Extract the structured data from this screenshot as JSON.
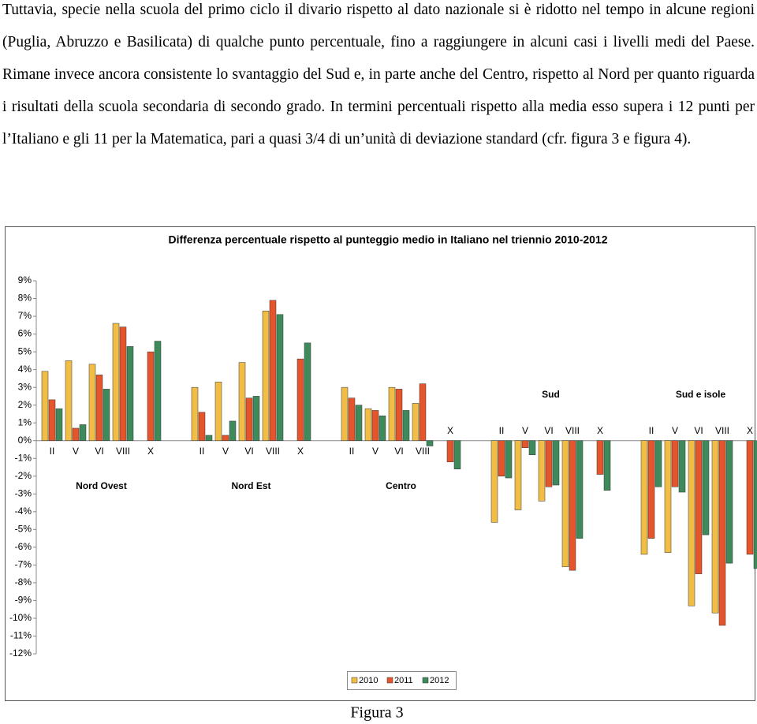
{
  "text": {
    "paragraph": "Tuttavia, specie nella scuola del primo ciclo il divario rispetto al dato nazionale si è ridotto nel tempo in alcune regioni (Puglia, Abruzzo e Basilicata) di qualche punto percentuale, fino a raggiungere in alcuni casi i livelli medi del Paese. Rimane invece ancora consistente lo svantaggio del Sud e, in parte anche del Centro, rispetto al Nord per quanto riguarda i risultati della scuola secondaria di secondo grado. In termini percentuali rispetto alla media esso supera i 12 punti per l’Italiano e gli 11 per la Matematica, pari a quasi 3/4 di un’unità di deviazione standard (cfr. figura 3 e figura 4).",
    "caption": "Figura 3"
  },
  "chart_data": {
    "type": "bar",
    "title": "Differenza percentuale rispetto al punteggio medio in Italiano nel triennio 2010-2012",
    "groups": [
      "Nord Ovest",
      "Nord Est",
      "Centro",
      "Sud",
      "Sud e isole"
    ],
    "categories": [
      "II",
      "V",
      "VI",
      "VIII",
      "X",
      "II",
      "V",
      "VI",
      "VIII",
      "X",
      "II",
      "V",
      "VI",
      "VIII",
      "X",
      "II",
      "V",
      "VI",
      "VIII",
      "X",
      "II",
      "V",
      "VI",
      "VIII",
      "X"
    ],
    "series": [
      {
        "name": "2010",
        "color": "#f2bd45",
        "values": [
          3.9,
          4.5,
          4.3,
          6.6,
          null,
          3.0,
          3.3,
          4.4,
          7.3,
          null,
          3.0,
          1.8,
          3.0,
          2.1,
          null,
          -4.6,
          -3.9,
          -3.4,
          -7.1,
          null,
          -6.4,
          -6.3,
          -9.3,
          -9.7,
          null
        ]
      },
      {
        "name": "2011",
        "color": "#e4552b",
        "values": [
          2.3,
          0.7,
          3.7,
          6.4,
          5.0,
          1.6,
          0.3,
          2.4,
          7.9,
          4.6,
          2.4,
          1.7,
          2.9,
          3.2,
          -1.2,
          -2.0,
          -0.4,
          -2.6,
          -7.3,
          -1.9,
          -5.5,
          -2.6,
          -7.5,
          -10.4,
          -6.4
        ]
      },
      {
        "name": "2012",
        "color": "#3e8a5b",
        "values": [
          1.8,
          0.9,
          2.9,
          5.3,
          5.6,
          0.3,
          1.1,
          2.5,
          7.1,
          5.5,
          2.0,
          1.4,
          1.7,
          -0.3,
          -1.6,
          -2.1,
          -0.8,
          -2.5,
          -5.5,
          -2.8,
          -2.6,
          -2.9,
          -5.3,
          -6.9,
          -7.2
        ]
      }
    ],
    "ylim": [
      -12,
      9
    ],
    "yticks": [
      {
        "value": 9,
        "label": "9%"
      },
      {
        "value": 8,
        "label": "8%"
      },
      {
        "value": 7,
        "label": "7%"
      },
      {
        "value": 6,
        "label": "6%"
      },
      {
        "value": 5,
        "label": "5%"
      },
      {
        "value": 4,
        "label": "4%"
      },
      {
        "value": 3,
        "label": "3%"
      },
      {
        "value": 2,
        "label": "2%"
      },
      {
        "value": 1,
        "label": "1%"
      },
      {
        "value": 0,
        "label": "0%"
      },
      {
        "value": -1,
        "label": "-1%"
      },
      {
        "value": -2,
        "label": "-2%"
      },
      {
        "value": -3,
        "label": "-3%"
      },
      {
        "value": -4,
        "label": "-4%"
      },
      {
        "value": -5,
        "label": "-5%"
      },
      {
        "value": -6,
        "label": "-6%"
      },
      {
        "value": -7,
        "label": "-7%"
      },
      {
        "value": -8,
        "label": "-8%"
      },
      {
        "value": -9,
        "label": "-9%"
      },
      {
        "value": -10,
        "label": "-10%"
      },
      {
        "value": -11,
        "label": "-11%"
      },
      {
        "value": -12,
        "label": "-12%"
      }
    ],
    "grid": false,
    "legend": "bottom"
  }
}
